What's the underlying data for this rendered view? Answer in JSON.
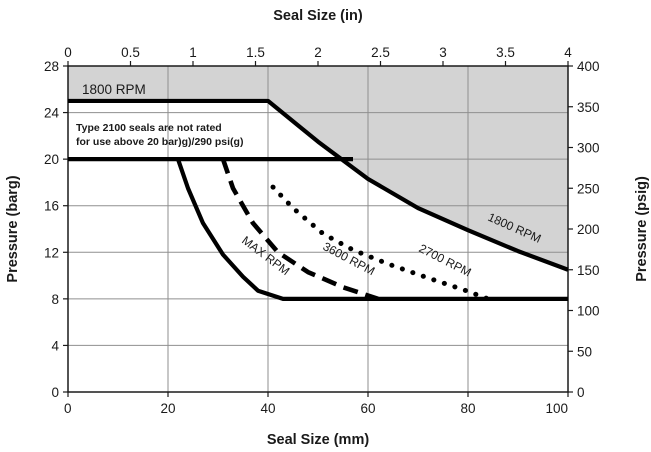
{
  "chart_data": {
    "type": "line",
    "title": "",
    "x_top_label": "Seal Size (in)",
    "x_bottom_label": "Seal Size (mm)",
    "y_left_label": "Pressure (barg)",
    "y_right_label": "Pressure (psig)",
    "x_mm_range": [
      0,
      100
    ],
    "y_barg_range": [
      0,
      28
    ],
    "x_in_range": [
      0,
      4
    ],
    "y_psig_range": [
      0,
      400
    ],
    "x_bottom_ticks": [
      "0",
      "20",
      "40",
      "60",
      "80",
      "100"
    ],
    "x_top_ticks": [
      "0",
      "0.5",
      "1",
      "1.5",
      "2",
      "2.5",
      "3",
      "3.5",
      "4"
    ],
    "y_left_ticks": [
      "0",
      "4",
      "8",
      "12",
      "16",
      "20",
      "24",
      "28"
    ],
    "y_right_ticks": [
      "0",
      "50",
      "100",
      "150",
      "200",
      "250",
      "300",
      "350",
      "400"
    ],
    "grid": true,
    "shaded_region_color": "#d3d3d3",
    "series": [
      {
        "name": "1800 RPM",
        "style": "solid",
        "points": [
          [
            0,
            25
          ],
          [
            40,
            25
          ],
          [
            50,
            21.5
          ],
          [
            60,
            18.3
          ],
          [
            70,
            15.8
          ],
          [
            80,
            13.9
          ],
          [
            90,
            12.1
          ],
          [
            100,
            10.5
          ]
        ]
      },
      {
        "name": "MAX RPM",
        "style": "solid",
        "points": [
          [
            22,
            20
          ],
          [
            24,
            17.5
          ],
          [
            27,
            14.5
          ],
          [
            31,
            11.8
          ],
          [
            35,
            9.9
          ],
          [
            38,
            8.7
          ],
          [
            43,
            8
          ],
          [
            100,
            8
          ]
        ]
      },
      {
        "name": "3600 RPM",
        "style": "dashed",
        "points": [
          [
            31,
            20
          ],
          [
            33,
            17.5
          ],
          [
            37,
            14.5
          ],
          [
            42,
            12
          ],
          [
            48,
            10.3
          ],
          [
            55,
            9
          ],
          [
            62,
            8
          ]
        ]
      },
      {
        "name": "2700 RPM",
        "style": "dotted",
        "points": [
          [
            41,
            17.6
          ],
          [
            45,
            15.8
          ],
          [
            51,
            13.6
          ],
          [
            57,
            12.2
          ],
          [
            64,
            11
          ],
          [
            72,
            9.8
          ],
          [
            79,
            8.8
          ],
          [
            84,
            8
          ]
        ]
      },
      {
        "name": "Type 2100 limit",
        "style": "solid",
        "points": [
          [
            0,
            20
          ],
          [
            57,
            20
          ]
        ]
      }
    ],
    "annotations": {
      "top_left_label": "1800 RPM",
      "note_line1": "Type 2100 seals are not rated",
      "note_line2": "for use above 20 bar)g)/290 psi(g)",
      "curve_label_1800": "1800 RPM",
      "curve_label_max": "MAX RPM",
      "curve_label_3600": "3600 RPM",
      "curve_label_2700": "2700 RPM"
    }
  }
}
